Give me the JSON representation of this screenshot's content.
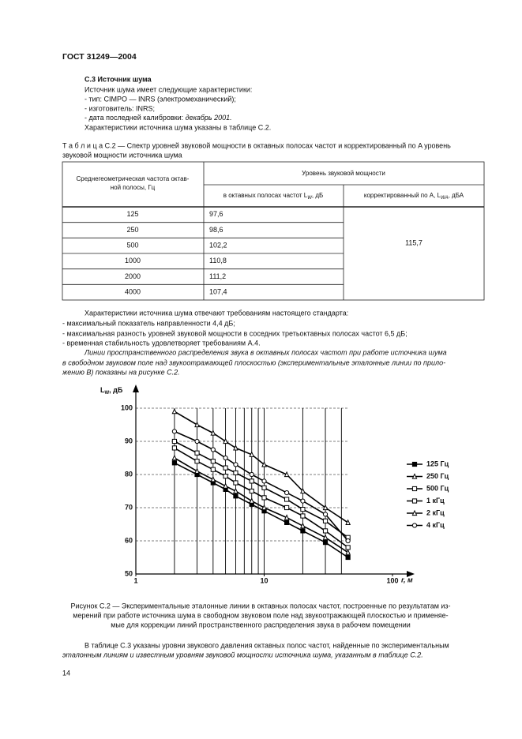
{
  "header": {
    "title": "ГОСТ 31249—2004"
  },
  "section": {
    "title": "С.3  Источник шума",
    "lines": [
      "Источник шума имеет следующие характеристики:",
      "- тип:  CIMPO — INRS (электромеханический);",
      "- изготовитель:  INRS;"
    ],
    "date_line": [
      "- дата последней калибровки:  ",
      "декабрь 2001."
    ],
    "last_line": "Характеристики источника шума указаны в таблице С.2."
  },
  "table": {
    "caption": [
      "Т а б л и ц а  С.2 — Спектр уровней звуковой мощности в октавных полосах частот и корректированный по A уровень",
      "звуковой мощности источника шума"
    ],
    "col1_header": [
      "Среднегеометрическая частота октав-",
      "ной полосы, Гц"
    ],
    "group_header": "Уровень звуковой мощности",
    "col2_header": [
      "в октавных полосах частот L",
      "W",
      ", дБ"
    ],
    "col3_header": [
      "корректированный по A, L",
      "WA",
      ", дБА"
    ],
    "rows": [
      [
        "125",
        "97,6"
      ],
      [
        "250",
        "98,6"
      ],
      [
        "500",
        "102,2"
      ],
      [
        "1000",
        "110,8"
      ],
      [
        "2000",
        "111,2"
      ],
      [
        "4000",
        "107,4"
      ]
    ],
    "corrected": "115,7"
  },
  "after_table": {
    "lines": [
      "Характеристики источника шума отвечают требованиям настоящего стандарта:",
      "- максимальный показатель направленности 4,4 дБ;",
      "- максимальная разность уровней звуковой мощности в соседних третьоктавных полосах частот 6,5 дБ;",
      "- временная стабильность удовлетворяет требованиям А.4."
    ],
    "italic_lines": [
      "Линии пространственного распределения звука в октавных полосах частот при работе источника шума",
      "в свободном звуковом поле над звукоотражающей плоскостью (экспериментальные эталонные линии по прило-",
      "жению В) показаны на рисунке С.2."
    ]
  },
  "chart_data": {
    "type": "line",
    "x_log": true,
    "y_label": [
      "L",
      "W",
      ", дБ"
    ],
    "x_label": "r, м",
    "xlim": [
      1,
      100
    ],
    "xticks": [
      1,
      10,
      100
    ],
    "x_grid": [
      1,
      2,
      3,
      4,
      5,
      6,
      7,
      8,
      9,
      10,
      20,
      30,
      40
    ],
    "ylim": [
      50,
      100
    ],
    "yticks": [
      50,
      60,
      70,
      80,
      90,
      100
    ],
    "grid": true,
    "x": [
      2,
      3,
      4,
      5,
      6,
      8,
      10,
      15,
      20,
      30,
      45
    ],
    "series": [
      {
        "name": "125 Гц",
        "color": "#000000",
        "marker": "square-filled",
        "values": [
          83.5,
          80,
          77.5,
          75.5,
          73.5,
          71,
          69,
          65.5,
          63,
          59.5,
          55
        ]
      },
      {
        "name": "250 Гц",
        "color": "#000000",
        "marker": "triangle",
        "values": [
          85,
          81,
          78.5,
          76.5,
          75,
          72,
          70,
          67,
          64.5,
          61,
          56.5
        ]
      },
      {
        "name": "500 Гц",
        "color": "#000000",
        "marker": "square",
        "values": [
          88,
          84,
          81.5,
          79.5,
          77.5,
          75,
          73,
          70,
          67.5,
          63,
          58
        ]
      },
      {
        "name": "1 кГц",
        "color": "#000000",
        "marker": "square",
        "values": [
          90,
          86.5,
          84,
          82,
          80.5,
          78,
          76,
          72.5,
          69.5,
          66,
          61
        ]
      },
      {
        "name": "2 кГц",
        "color": "#000000",
        "marker": "triangle",
        "values": [
          99,
          95,
          92.5,
          90,
          88,
          86,
          83,
          80,
          75,
          70,
          65.5
        ]
      },
      {
        "name": "4 кГц",
        "color": "#000000",
        "marker": "circle",
        "values": [
          93,
          90,
          87.5,
          85,
          83,
          80,
          78,
          74.5,
          72,
          68,
          60
        ]
      }
    ]
  },
  "figure": {
    "caption": [
      "Рисунок С.2 — Экспериментальные эталонные линии в октавных полосах частот, построенные по результатам из-",
      "мерений при работе источника шума в свободном звуковом поле над звукоотражающей плоскостью и применяе-",
      "мые для коррекции линий пространственного распределения звука в рабочем помещении"
    ]
  },
  "closing": {
    "lines": [
      "В таблице С.3 указаны уровни звукового давления октавных полос частот, найденные по экспериментальным",
      "эталонным линиям и известным уровням звуковой мощности источника шума, указанным в таблице С.2."
    ]
  },
  "footer": {
    "page": "14"
  }
}
